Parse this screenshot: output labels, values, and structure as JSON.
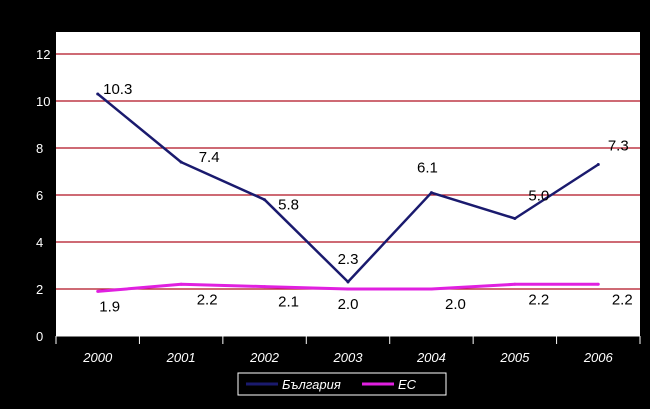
{
  "colors": {
    "background": "#000000",
    "plot_area": "#ffffff",
    "gridline": "#b01020",
    "axis_text": "#ffffff",
    "bulgaria_line": "#1a1a6e",
    "eu_line": "#e020e0"
  },
  "chart_data": {
    "type": "line",
    "title": "",
    "xlabel": "",
    "ylabel": "",
    "categories": [
      "2000",
      "2001",
      "2002",
      "2003",
      "2004",
      "2005",
      "2006"
    ],
    "y_ticks": [
      "0",
      "2",
      "4",
      "6",
      "8",
      "10",
      "12"
    ],
    "ylim": [
      0,
      12
    ],
    "grid": true,
    "legend_position": "bottom",
    "series": [
      {
        "name": "България",
        "color": "#1a1a6e",
        "values": [
          10.3,
          7.4,
          5.8,
          2.3,
          6.1,
          5.0,
          7.3
        ],
        "labels": [
          "10.3",
          "7.4",
          "5.8",
          "2.3",
          "6.1",
          "5.0",
          "7.3"
        ]
      },
      {
        "name": "ЕС",
        "color": "#e020e0",
        "values": [
          1.9,
          2.2,
          2.1,
          2.0,
          2.0,
          2.2,
          2.2
        ],
        "labels": [
          "1.9",
          "2.2",
          "2.1",
          "2.0",
          "2.0",
          "2.2",
          "2.2"
        ]
      }
    ]
  }
}
